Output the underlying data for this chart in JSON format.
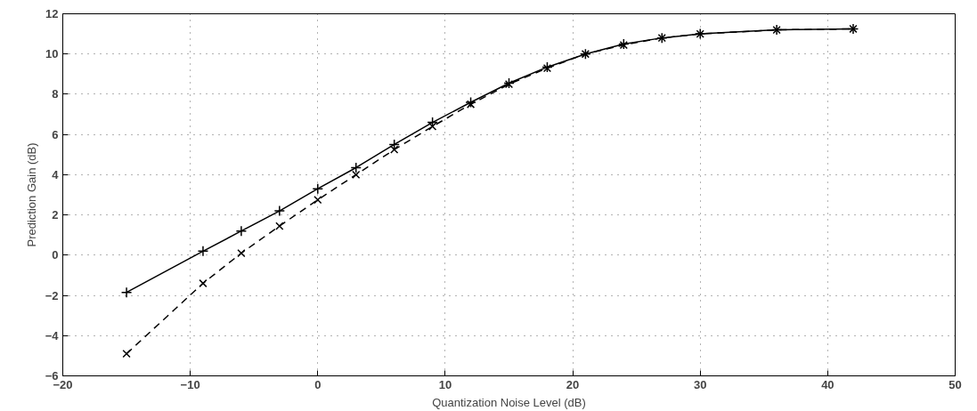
{
  "chart_data": {
    "type": "line",
    "xlabel": "Quantization Noise Level (dB)",
    "ylabel": "Prediction Gain (dB)",
    "xlim": [
      -20,
      50
    ],
    "xticks": [
      {
        "value": -20,
        "label": "−20"
      },
      {
        "value": -10,
        "label": "−10"
      },
      0,
      10,
      20,
      30,
      40,
      50
    ],
    "ylim": [
      -6,
      12
    ],
    "yticks": [
      {
        "value": -6,
        "label": "−6"
      },
      {
        "value": -4,
        "label": "−4"
      },
      {
        "value": -2,
        "label": "−2"
      },
      0,
      2,
      4,
      6,
      8,
      10,
      12
    ],
    "grid": true,
    "x": [
      -15,
      -9,
      -6,
      -3,
      0,
      3,
      6,
      9,
      12,
      15,
      18,
      21,
      24,
      27,
      30,
      36,
      42
    ],
    "series": [
      {
        "color": "#000000",
        "line_style": "solid",
        "marker": "cross",
        "values": [
          -1.85,
          0.2,
          1.2,
          2.2,
          3.3,
          4.35,
          5.5,
          6.6,
          7.6,
          8.55,
          9.35,
          10.0,
          10.5,
          10.8,
          11.0,
          11.2,
          11.25
        ]
      },
      {
        "color": "#000000",
        "line_style": "dashed",
        "marker": "x",
        "values": [
          -4.9,
          -1.4,
          0.1,
          1.45,
          2.75,
          4.0,
          5.25,
          6.4,
          7.5,
          8.5,
          9.3,
          10.0,
          10.45,
          10.8,
          11.0,
          11.2,
          11.25
        ]
      }
    ]
  }
}
